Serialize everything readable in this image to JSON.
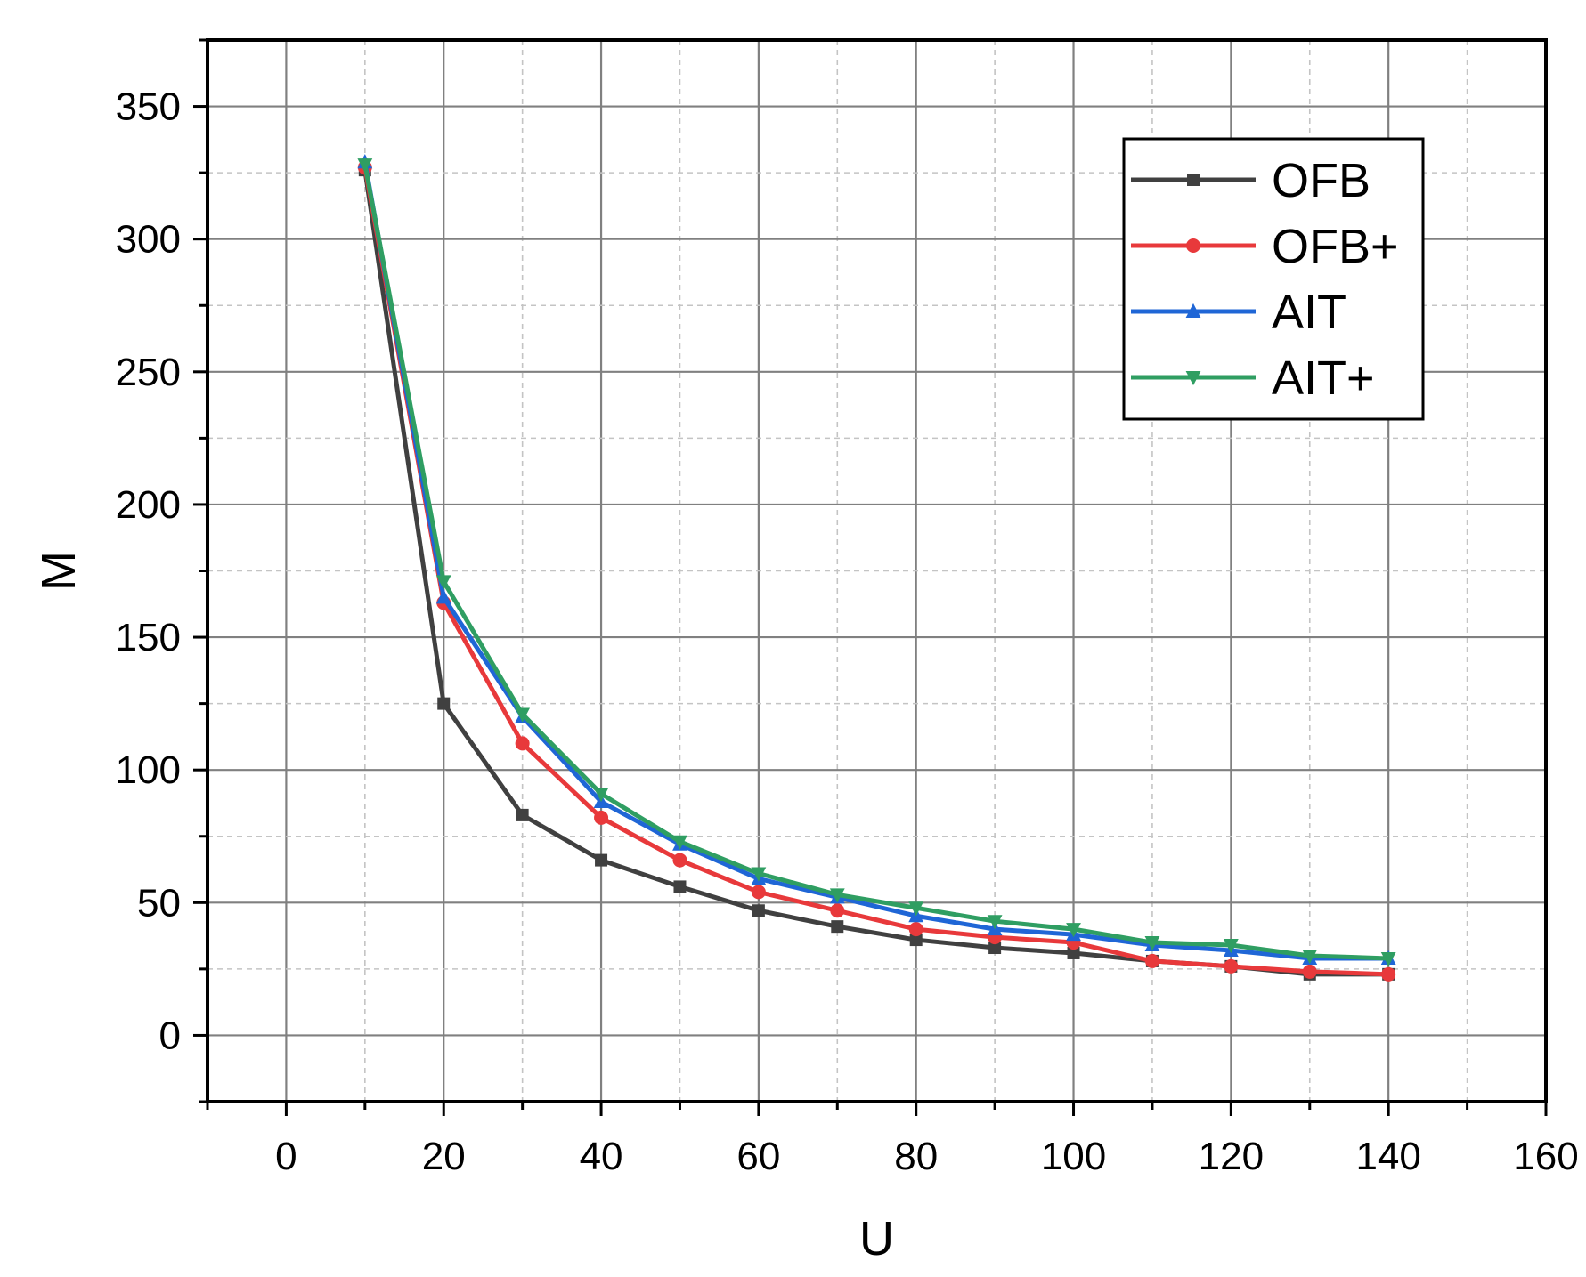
{
  "chart_data": {
    "type": "line",
    "xlabel": "U",
    "ylabel": "M",
    "xlim": [
      -10,
      160
    ],
    "ylim": [
      -25,
      375
    ],
    "xticks": [
      0,
      20,
      40,
      60,
      80,
      100,
      120,
      140,
      160
    ],
    "yticks": [
      0,
      50,
      100,
      150,
      200,
      250,
      300,
      350
    ],
    "grid": true,
    "legend_position": "top-right",
    "x": [
      10,
      20,
      30,
      40,
      50,
      60,
      70,
      80,
      90,
      100,
      110,
      120,
      130,
      140
    ],
    "series": [
      {
        "name": "OFB",
        "color": "#404040",
        "marker": "square",
        "values": [
          326,
          125,
          83,
          66,
          56,
          47,
          41,
          36,
          33,
          31,
          28,
          26,
          23,
          23
        ]
      },
      {
        "name": "OFB+",
        "color": "#e8393b",
        "marker": "circle",
        "values": [
          327,
          163,
          110,
          82,
          66,
          54,
          47,
          40,
          37,
          35,
          28,
          26,
          24,
          23
        ]
      },
      {
        "name": "AIT",
        "color": "#1f66d6",
        "marker": "triangle-up",
        "values": [
          329,
          165,
          120,
          88,
          72,
          59,
          52,
          45,
          40,
          38,
          34,
          32,
          29,
          29
        ]
      },
      {
        "name": "AIT+",
        "color": "#2f9e62",
        "marker": "triangle-down",
        "values": [
          328,
          171,
          121,
          91,
          73,
          61,
          53,
          48,
          43,
          40,
          35,
          34,
          30,
          29
        ]
      }
    ]
  }
}
